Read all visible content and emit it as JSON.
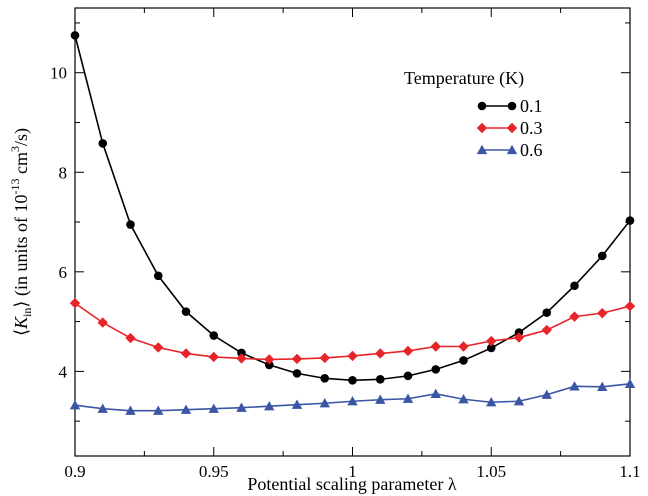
{
  "chart_data": {
    "type": "line",
    "xlabel": "Potential scaling parameter λ",
    "ylabel_parts": {
      "open": "⟨",
      "symbol": "K",
      "sub": "in",
      "close": "⟩ (in units of 10",
      "exp": "-13",
      "unit": " cm",
      "unit_exp": "3",
      "tail": "/s)"
    },
    "xlim": [
      0.9,
      1.1
    ],
    "ylim": [
      2.3,
      11.3
    ],
    "xticks": [
      0.9,
      0.95,
      1,
      1.05,
      1.1
    ],
    "xtick_labels": [
      "0.9",
      "0.95",
      "1",
      "1.05",
      "1.1"
    ],
    "yticks": [
      4,
      6,
      8,
      10
    ],
    "ytick_labels": [
      "4",
      "6",
      "8",
      "10"
    ],
    "grid": false,
    "legend_title": "Temperature (K)",
    "legend_position": "top-right",
    "x": [
      0.9,
      0.91,
      0.92,
      0.93,
      0.94,
      0.95,
      0.96,
      0.97,
      0.98,
      0.99,
      1.0,
      1.01,
      1.02,
      1.03,
      1.04,
      1.05,
      1.06,
      1.07,
      1.08,
      1.09,
      1.1
    ],
    "series": [
      {
        "name": "0.1",
        "color": "#000000",
        "marker": "circle",
        "values": [
          10.75,
          8.58,
          6.95,
          5.92,
          5.2,
          4.72,
          4.37,
          4.13,
          3.96,
          3.86,
          3.82,
          3.84,
          3.91,
          4.04,
          4.22,
          4.47,
          4.78,
          5.18,
          5.72,
          6.32,
          7.03
        ]
      },
      {
        "name": "0.3",
        "color": "#e8242b",
        "marker": "diamond",
        "values": [
          5.37,
          4.98,
          4.67,
          4.48,
          4.36,
          4.29,
          4.26,
          4.24,
          4.25,
          4.27,
          4.31,
          4.36,
          4.41,
          4.5,
          4.5,
          4.61,
          4.68,
          4.83,
          5.1,
          5.17,
          5.31
        ]
      },
      {
        "name": "0.6",
        "color": "#3a56a5",
        "marker": "triangle",
        "values": [
          3.32,
          3.25,
          3.21,
          3.21,
          3.23,
          3.25,
          3.27,
          3.3,
          3.33,
          3.36,
          3.4,
          3.43,
          3.45,
          3.55,
          3.44,
          3.38,
          3.4,
          3.53,
          3.7,
          3.69,
          3.75
        ]
      }
    ]
  }
}
